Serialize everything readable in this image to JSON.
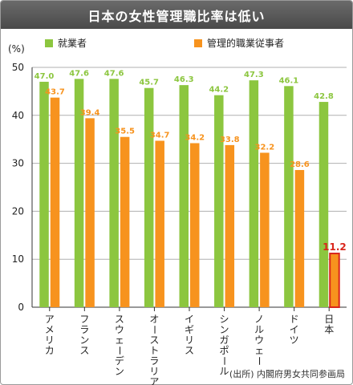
{
  "chart_data": {
    "type": "bar",
    "title": "日本の女性管理職比率は低い",
    "ylabel": "(%)",
    "ylim": [
      0,
      50
    ],
    "yticks": [
      0,
      10,
      20,
      30,
      40,
      50
    ],
    "grid": true,
    "legend": "top",
    "categories": [
      "アメリカ",
      "フランス",
      "スウェーデン",
      "オーストラリア",
      "イギリス",
      "シンガポール",
      "ノルウェー",
      "ドイツ",
      "日本"
    ],
    "series": [
      {
        "name": "就業者",
        "color": "#8cc63f",
        "values": [
          47.0,
          47.6,
          47.6,
          45.7,
          46.3,
          44.2,
          47.3,
          46.1,
          42.8
        ],
        "labels": [
          "47.0",
          "47.6",
          "47.6",
          "45.7",
          "46.3",
          "44.2",
          "47.3",
          "46.1",
          "42.8"
        ]
      },
      {
        "name": "管理的職業従事者",
        "color": "#f7931e",
        "values": [
          43.7,
          39.4,
          35.5,
          34.7,
          34.2,
          33.8,
          32.2,
          28.6,
          11.2
        ],
        "labels": [
          "43.7",
          "39.4",
          "35.5",
          "34.7",
          "34.2",
          "33.8",
          "32.2",
          "28.6",
          "11.2"
        ]
      }
    ],
    "highlight": {
      "series": 1,
      "index": 8,
      "color": "#d9261c"
    },
    "source": "(出所) 内閣府男女共同参画局"
  }
}
